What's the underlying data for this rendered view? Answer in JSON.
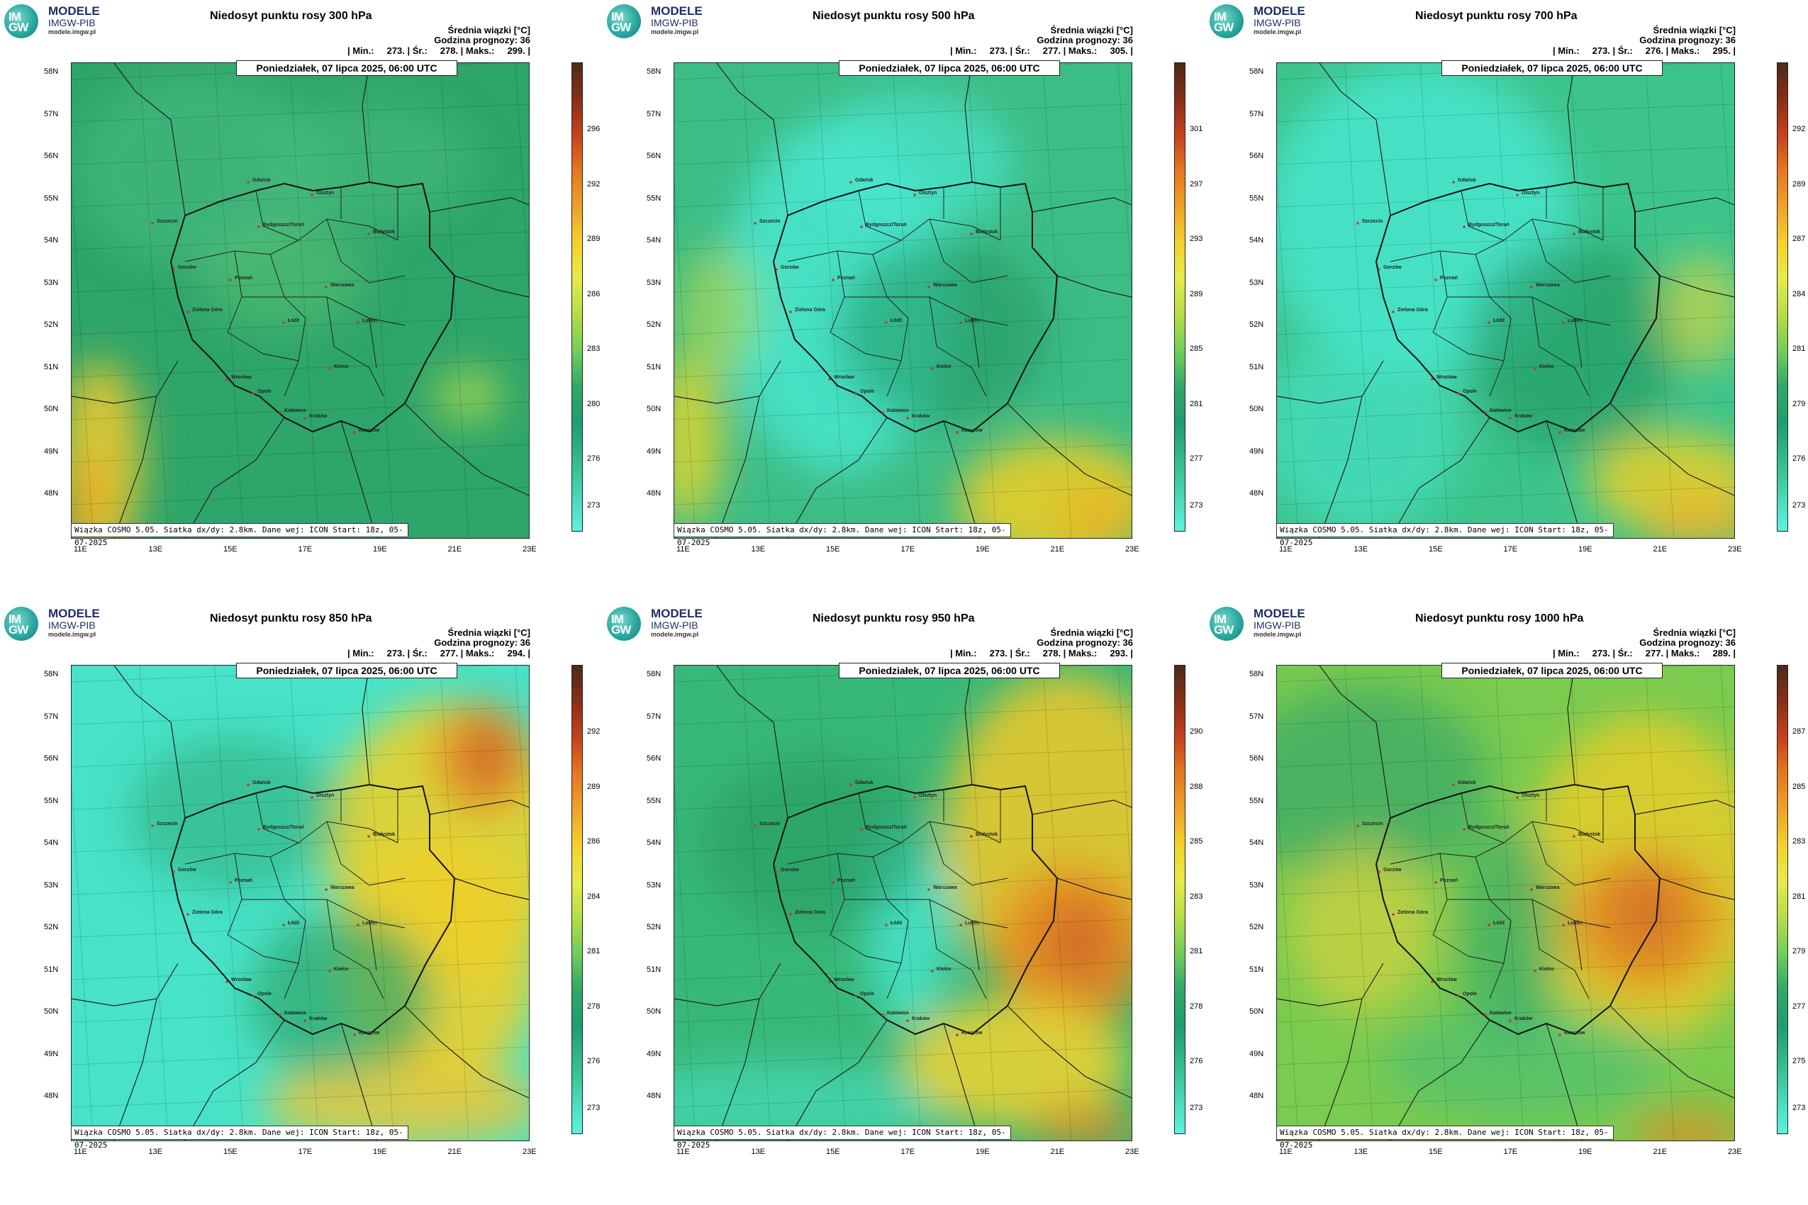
{
  "logo": {
    "name": "MODELE",
    "org": "IMGW-PIB",
    "url": "modele.imgw.pl",
    "mark": "IM\nGW"
  },
  "common": {
    "info1": "Średnia wiązki [°C]",
    "info2": "Godzina prognozy: 36",
    "date": "Poniedziałek, 07 lipca 2025, 06:00 UTC",
    "footer": "Wiązka COSMO 5.05. Siatka dx/dy: 2.8km. Dane wej: ICON Start: 18z, 05-07-2025",
    "lat_labels": [
      "58N",
      "57N",
      "56N",
      "55N",
      "54N",
      "53N",
      "52N",
      "51N",
      "50N",
      "49N",
      "48N"
    ],
    "lon_labels": [
      "11E",
      "13E",
      "15E",
      "17E",
      "19E",
      "21E",
      "23E"
    ],
    "cities": [
      "Gdańsk",
      "Olsztyn",
      "Białystok",
      "Szczecin",
      "Bydgoszcz/Toruń",
      "Gorzów",
      "Poznań",
      "Zielona Góra",
      "Łódź",
      "Warszawa",
      "Lublin",
      "Wrocław",
      "Opole",
      "Kielce",
      "Katowice",
      "Kraków",
      "Rzeszów"
    ]
  },
  "panels": [
    {
      "title": "Niedosyt punktu rosy 300 hPa",
      "stats": "| Min.:     273. | Śr.:     278. | Maks.:     299. |",
      "ticks": [
        "296",
        "292",
        "289",
        "286",
        "283",
        "280",
        "276",
        "273"
      ],
      "palette": "p300"
    },
    {
      "title": "Niedosyt punktu rosy 500 hPa",
      "stats": "| Min.:     273. | Śr.:     277. | Maks.:     305. |",
      "ticks": [
        "301",
        "297",
        "293",
        "289",
        "285",
        "281",
        "277",
        "273"
      ],
      "palette": "p500"
    },
    {
      "title": "Niedosyt punktu rosy 700 hPa",
      "stats": "| Min.:     273. | Śr.:     276. | Maks.:     295. |",
      "ticks": [
        "292",
        "289",
        "287",
        "284",
        "281",
        "279",
        "276",
        "273"
      ],
      "palette": "p700"
    },
    {
      "title": "Niedosyt punktu rosy 850 hPa",
      "stats": "| Min.:     273. | Śr.:     277. | Maks.:     294. |",
      "ticks": [
        "292",
        "289",
        "286",
        "284",
        "281",
        "278",
        "276",
        "273"
      ],
      "palette": "p850"
    },
    {
      "title": "Niedosyt punktu rosy 950 hPa",
      "stats": "| Min.:     273. | Śr.:     278. | Maks.:     293. |",
      "ticks": [
        "290",
        "288",
        "285",
        "283",
        "281",
        "278",
        "276",
        "273"
      ],
      "palette": "p950"
    },
    {
      "title": "Niedosyt punktu rosy 1000 hPa",
      "stats": "| Min.:     273. | Śr.:     277. | Maks.:     289. |",
      "ticks": [
        "287",
        "285",
        "283",
        "281",
        "279",
        "277",
        "275",
        "273"
      ],
      "palette": "p1000"
    }
  ]
}
